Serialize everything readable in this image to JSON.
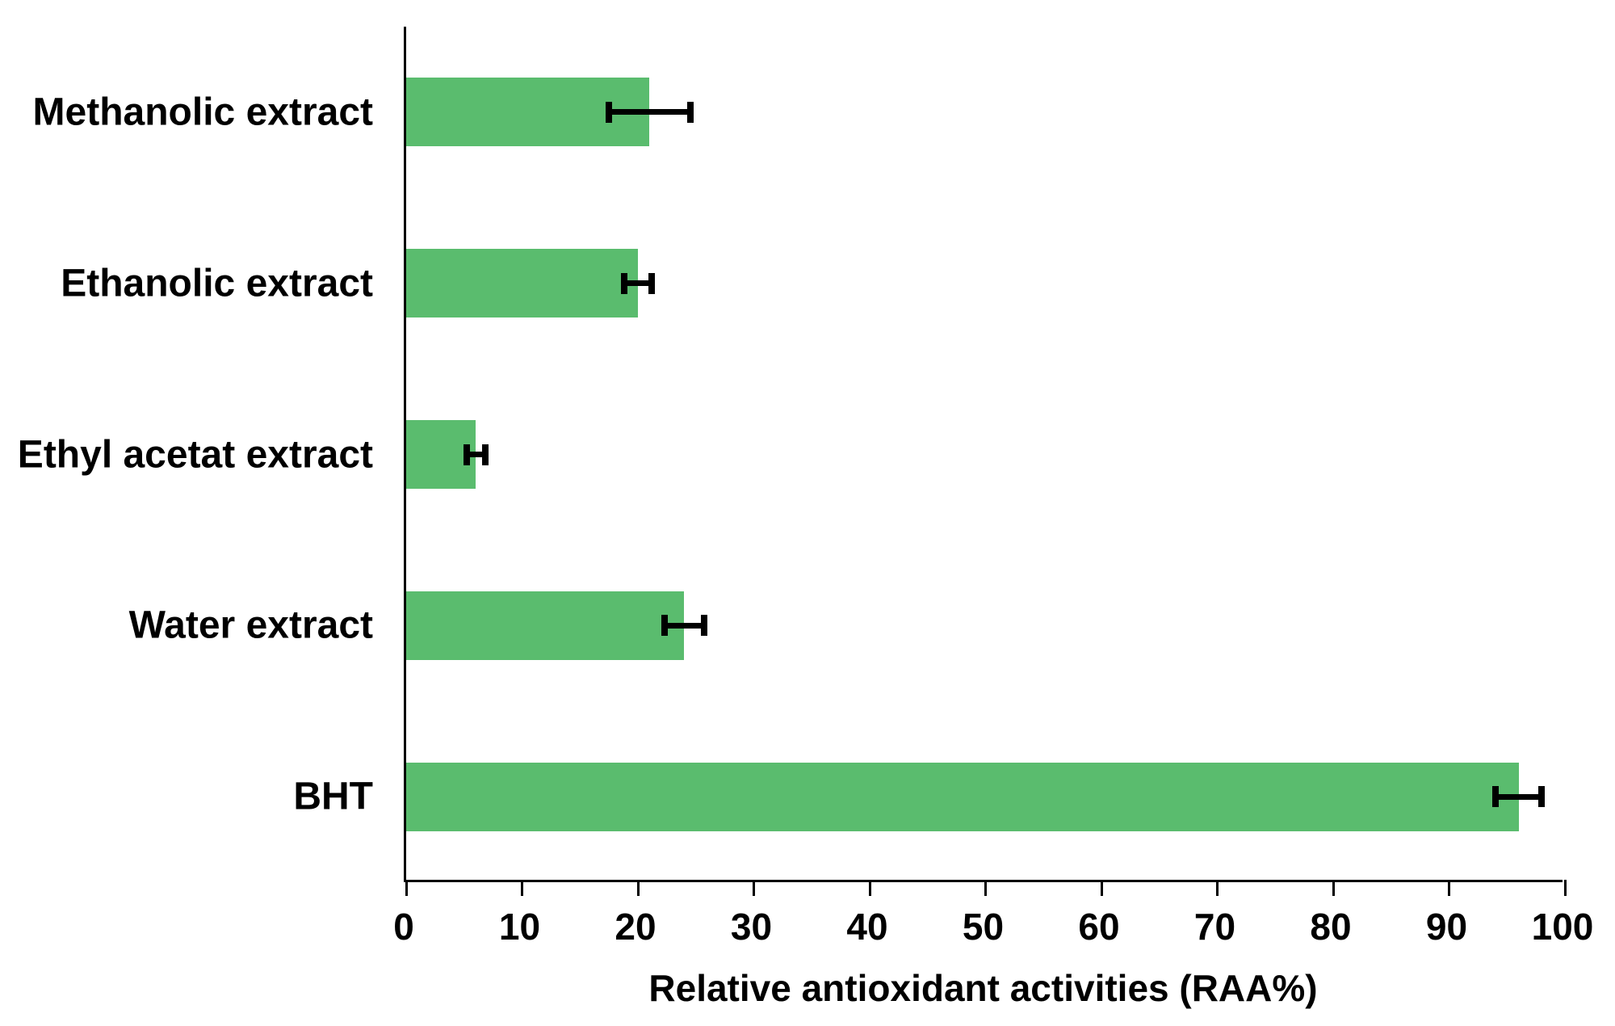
{
  "chart_data": {
    "type": "bar",
    "orientation": "horizontal",
    "title": "",
    "xlabel": "Relative antioxidant activities (RAA%)",
    "ylabel": "",
    "categories": [
      "Methanolic extract",
      "Ethanolic extract",
      "Ethyl acetat extract",
      "Water extract",
      "BHT"
    ],
    "values": [
      21,
      20,
      6,
      24,
      96
    ],
    "errors": [
      3.5,
      1.2,
      0.8,
      1.7,
      2
    ],
    "xlim": [
      0,
      100
    ],
    "xticks": [
      0,
      10,
      20,
      30,
      40,
      50,
      60,
      70,
      80,
      90,
      100
    ],
    "grid": false,
    "legend": "none",
    "colors": {
      "bar": "#5abc6e",
      "error_bar": "#000000",
      "axis": "#000000",
      "text": "#000000",
      "background": "#ffffff"
    }
  }
}
